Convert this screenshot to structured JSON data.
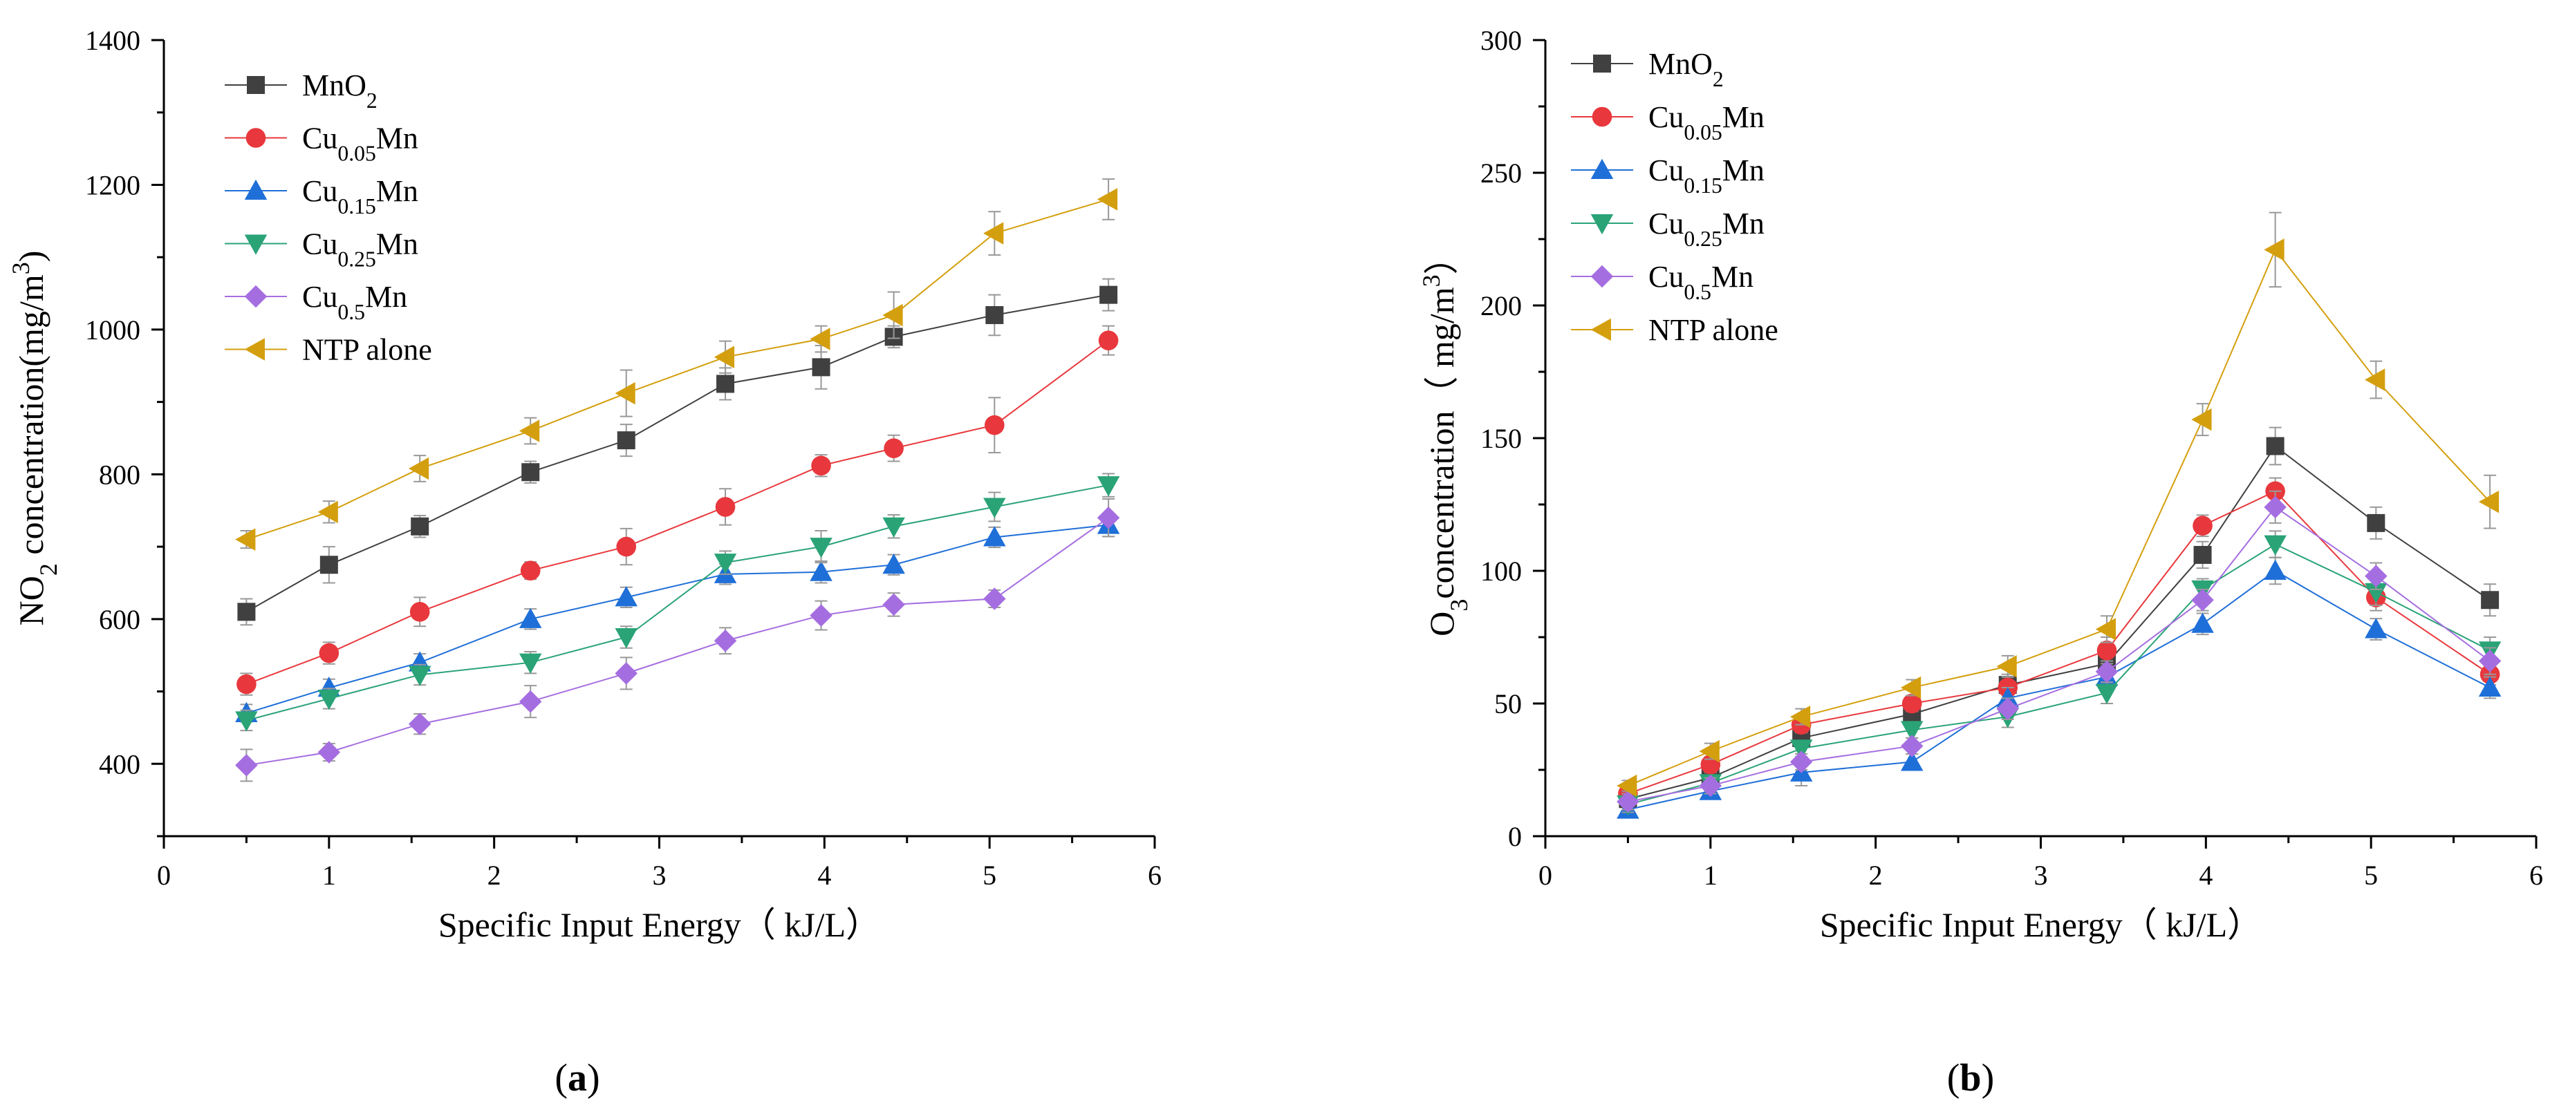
{
  "figure": {
    "panel_labels": [
      "a",
      "b"
    ]
  },
  "chart_data": [
    {
      "type": "line",
      "panel": "a",
      "xlabel": "Specific Input Energy（ kJ/L）",
      "ylabel": "NO2 concentration(mg/m3)",
      "ylabel_parts": [
        {
          "t": "NO",
          "s": "n"
        },
        {
          "t": "2",
          "s": "sub"
        },
        {
          "t": " concentration(mg/m",
          "s": "n"
        },
        {
          "t": "3",
          "s": "sup"
        },
        {
          "t": ")",
          "s": "n"
        }
      ],
      "xlim": [
        0,
        6
      ],
      "ylim": [
        300,
        1400
      ],
      "xticks": [
        0,
        1,
        2,
        3,
        4,
        5,
        6
      ],
      "yticks": [
        400,
        600,
        800,
        1000,
        1200,
        1400
      ],
      "x": [
        0.5,
        1.0,
        1.55,
        2.22,
        2.8,
        3.4,
        3.98,
        4.42,
        5.03,
        5.72
      ],
      "legend_position": "top-left",
      "series": [
        {
          "name": "MnO2",
          "label_parts": [
            {
              "t": "MnO",
              "s": "n"
            },
            {
              "t": "2",
              "s": "sub"
            }
          ],
          "marker": "square",
          "color": "#404040",
          "values": [
            610,
            675,
            728,
            803,
            847,
            925,
            948,
            990,
            1020,
            1048
          ],
          "errors": [
            18,
            25,
            15,
            15,
            22,
            22,
            30,
            15,
            28,
            22
          ]
        },
        {
          "name": "Cu0.05Mn",
          "label_parts": [
            {
              "t": "Cu",
              "s": "n"
            },
            {
              "t": "0.05",
              "s": "sub"
            },
            {
              "t": "Mn",
              "s": "n"
            }
          ],
          "marker": "circle",
          "color": "#e8383d",
          "values": [
            510,
            553,
            610,
            667,
            700,
            755,
            812,
            836,
            868,
            985
          ],
          "errors": [
            15,
            15,
            20,
            12,
            25,
            25,
            15,
            18,
            38,
            20
          ]
        },
        {
          "name": "Cu0.15Mn",
          "label_parts": [
            {
              "t": "Cu",
              "s": "n"
            },
            {
              "t": "0.15",
              "s": "sub"
            },
            {
              "t": "Mn",
              "s": "n"
            }
          ],
          "marker": "triangle-up",
          "color": "#1f6fd8",
          "values": [
            470,
            505,
            540,
            600,
            630,
            662,
            665,
            675,
            713,
            730
          ],
          "errors": [
            12,
            12,
            12,
            14,
            14,
            14,
            15,
            14,
            14,
            16
          ]
        },
        {
          "name": "Cu0.25Mn",
          "label_parts": [
            {
              "t": "Cu",
              "s": "n"
            },
            {
              "t": "0.25",
              "s": "sub"
            },
            {
              "t": "Mn",
              "s": "n"
            }
          ],
          "marker": "triangle-down",
          "color": "#2aa377",
          "values": [
            460,
            490,
            523,
            540,
            575,
            678,
            700,
            728,
            755,
            785
          ],
          "errors": [
            14,
            14,
            14,
            15,
            15,
            16,
            22,
            16,
            20,
            16
          ]
        },
        {
          "name": "Cu0.5Mn",
          "label_parts": [
            {
              "t": "Cu",
              "s": "n"
            },
            {
              "t": "0.5",
              "s": "sub"
            },
            {
              "t": "Mn",
              "s": "n"
            }
          ],
          "marker": "diamond",
          "color": "#a56ee0",
          "values": [
            398,
            416,
            455,
            486,
            525,
            570,
            605,
            620,
            628,
            740
          ],
          "errors": [
            22,
            12,
            14,
            22,
            22,
            18,
            20,
            16,
            12,
            26
          ]
        },
        {
          "name": "NTP alone",
          "label_parts": [
            {
              "t": "NTP alone",
              "s": "n"
            }
          ],
          "marker": "triangle-left",
          "color": "#d49f0e",
          "values": [
            710,
            748,
            808,
            860,
            912,
            962,
            987,
            1020,
            1133,
            1180
          ],
          "errors": [
            12,
            15,
            18,
            18,
            32,
            22,
            18,
            32,
            30,
            28
          ]
        }
      ]
    },
    {
      "type": "line",
      "panel": "b",
      "xlabel": "Specific Input Energy（ kJ/L）",
      "ylabel": "O3concentration（ mg/m3）",
      "ylabel_parts": [
        {
          "t": "O",
          "s": "n"
        },
        {
          "t": "3",
          "s": "sub"
        },
        {
          "t": "concentration（ mg/m",
          "s": "n"
        },
        {
          "t": "3",
          "s": "sup"
        },
        {
          "t": "）",
          "s": "n"
        }
      ],
      "xlim": [
        0,
        6
      ],
      "ylim": [
        0,
        300
      ],
      "xticks": [
        0,
        1,
        2,
        3,
        4,
        5,
        6
      ],
      "yticks": [
        0,
        50,
        100,
        150,
        200,
        250,
        300
      ],
      "x": [
        0.5,
        1.0,
        1.55,
        2.22,
        2.8,
        3.4,
        3.98,
        4.42,
        5.03,
        5.72
      ],
      "legend_position": "top-left",
      "series": [
        {
          "name": "MnO2",
          "label_parts": [
            {
              "t": " MnO",
              "s": "n"
            },
            {
              "t": "2",
              "s": "sub"
            }
          ],
          "marker": "square",
          "color": "#404040",
          "values": [
            14,
            22,
            37,
            46,
            57,
            65,
            106,
            147,
            118,
            89
          ],
          "errors": [
            3,
            3,
            3,
            4,
            4,
            5,
            5,
            7,
            6,
            6
          ]
        },
        {
          "name": "Cu0.05Mn",
          "label_parts": [
            {
              "t": "Cu",
              "s": "n"
            },
            {
              "t": "0.05",
              "s": "sub"
            },
            {
              "t": "Mn",
              "s": "n"
            }
          ],
          "marker": "circle",
          "color": "#e8383d",
          "values": [
            16,
            27,
            42,
            50,
            56,
            70,
            117,
            130,
            90,
            61
          ],
          "errors": [
            3,
            3,
            3,
            3,
            4,
            5,
            4,
            5,
            5,
            4
          ]
        },
        {
          "name": "Cu0.15Mn",
          "label_parts": [
            {
              "t": "Cu",
              "s": "n"
            },
            {
              "t": "0.15",
              "s": "sub"
            },
            {
              "t": "Mn",
              "s": "n"
            }
          ],
          "marker": "triangle-up",
          "color": "#1f6fd8",
          "values": [
            10,
            17,
            24,
            28,
            52,
            60,
            80,
            100,
            78,
            56
          ],
          "errors": [
            2,
            3,
            5,
            3,
            4,
            4,
            4,
            5,
            4,
            4
          ]
        },
        {
          "name": "Cu0.25Mn",
          "label_parts": [
            {
              "t": "Cu",
              "s": "n"
            },
            {
              "t": "0.25",
              "s": "sub"
            },
            {
              "t": "Mn",
              "s": "n"
            }
          ],
          "marker": "triangle-down",
          "color": "#2aa377",
          "values": [
            12,
            20,
            33,
            40,
            45,
            54,
            93,
            110,
            92,
            70
          ],
          "errors": [
            3,
            3,
            3,
            3,
            4,
            4,
            4,
            5,
            5,
            5
          ]
        },
        {
          "name": "Cu0.5Mn",
          "label_parts": [
            {
              "t": "Cu",
              "s": "n"
            },
            {
              "t": "0.5",
              "s": "sub"
            },
            {
              "t": "Mn",
              "s": "n"
            }
          ],
          "marker": "diamond",
          "color": "#a56ee0",
          "values": [
            13,
            19,
            28,
            34,
            48,
            62,
            89,
            124,
            98,
            66
          ],
          "errors": [
            3,
            3,
            3,
            3,
            4,
            4,
            4,
            6,
            5,
            5
          ]
        },
        {
          "name": "NTP alone",
          "label_parts": [
            {
              "t": "NTP alone",
              "s": "n"
            }
          ],
          "marker": "triangle-left",
          "color": "#d49f0e",
          "values": [
            19,
            32,
            45,
            56,
            64,
            78,
            157,
            221,
            172,
            126
          ],
          "errors": [
            2,
            3,
            3,
            3,
            4,
            5,
            6,
            14,
            7,
            10
          ]
        }
      ]
    }
  ]
}
